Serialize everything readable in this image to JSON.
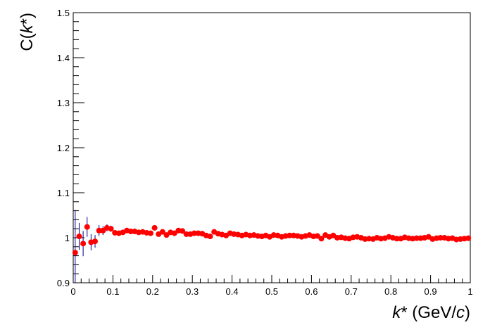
{
  "chart_data": {
    "type": "scatter",
    "xlabel_parts": [
      "k",
      "*",
      " (GeV/",
      "c",
      ")"
    ],
    "ylabel_parts": [
      "C(",
      "k",
      "*)"
    ],
    "xlim": [
      0,
      1
    ],
    "ylim": [
      0.9,
      1.5
    ],
    "x_ticks": [
      "0",
      "0.1",
      "0.2",
      "0.3",
      "0.4",
      "0.5",
      "0.6",
      "0.7",
      "0.8",
      "0.9",
      "1"
    ],
    "y_ticks": [
      "0.9",
      "1",
      "1.1",
      "1.2",
      "1.3",
      "1.4",
      "1.5"
    ],
    "grid": false,
    "marker_color": "#ff0000",
    "errorbar_color": "#00008b",
    "series": [
      {
        "x": [
          0.005,
          0.015,
          0.025,
          0.035,
          0.045,
          0.055,
          0.065,
          0.075,
          0.085,
          0.095,
          0.105,
          0.115,
          0.125,
          0.135,
          0.145,
          0.155,
          0.165,
          0.175,
          0.185,
          0.195,
          0.205,
          0.215,
          0.225,
          0.235,
          0.245,
          0.255,
          0.265,
          0.275,
          0.285,
          0.295,
          0.305,
          0.315,
          0.325,
          0.335,
          0.345,
          0.355,
          0.365,
          0.375,
          0.385,
          0.395,
          0.405,
          0.415,
          0.425,
          0.435,
          0.445,
          0.455,
          0.465,
          0.475,
          0.485,
          0.495,
          0.505,
          0.515,
          0.525,
          0.535,
          0.545,
          0.555,
          0.565,
          0.575,
          0.585,
          0.595,
          0.605,
          0.615,
          0.625,
          0.635,
          0.645,
          0.655,
          0.665,
          0.675,
          0.685,
          0.695,
          0.705,
          0.715,
          0.725,
          0.735,
          0.745,
          0.755,
          0.765,
          0.775,
          0.785,
          0.795,
          0.805,
          0.815,
          0.825,
          0.835,
          0.845,
          0.855,
          0.865,
          0.875,
          0.885,
          0.895,
          0.905,
          0.915,
          0.925,
          0.935,
          0.945,
          0.955,
          0.965,
          0.975,
          0.985,
          0.995
        ],
        "y": [
          0.967,
          1.003,
          0.987,
          1.024,
          0.99,
          0.992,
          1.016,
          1.016,
          1.022,
          1.02,
          1.011,
          1.01,
          1.012,
          1.016,
          1.014,
          1.014,
          1.012,
          1.013,
          1.011,
          1.01,
          1.022,
          1.008,
          1.013,
          1.006,
          1.012,
          1.01,
          1.016,
          1.015,
          1.008,
          1.008,
          1.01,
          1.01,
          1.009,
          1.005,
          1.003,
          1.013,
          1.009,
          1.007,
          1.005,
          1.01,
          1.008,
          1.007,
          1.005,
          1.007,
          1.005,
          1.006,
          1.004,
          1.003,
          1.005,
          1.002,
          1.006,
          1.005,
          1.002,
          1.004,
          1.005,
          1.005,
          1.004,
          1.002,
          1.004,
          1.006,
          1.003,
          1.004,
          0.998,
          1.006,
          1.002,
          1.005,
          1.0,
          1.001,
          0.999,
          0.998,
          1.001,
          1.002,
          1.0,
          0.997,
          0.998,
          0.997,
          1.0,
          0.998,
          0.999,
          1.002,
          1.0,
          0.998,
          0.998,
          1.001,
          0.999,
          0.998,
          0.999,
          0.999,
          1.0,
          1.002,
          0.997,
          0.999,
          1.0,
          1.0,
          0.998,
          0.999,
          0.996,
          0.997,
          0.998,
          0.999
        ],
        "err": [
          0.095,
          0.03,
          0.028,
          0.022,
          0.018,
          0.014,
          0.012,
          0.01,
          0.008,
          0.007,
          0.006,
          0.005,
          0.005,
          0.004,
          0.004,
          0.004,
          0.003,
          0.003,
          0.003,
          0.003,
          0.003,
          0.003,
          0.003,
          0.003,
          0.003,
          0.003,
          0.003,
          0.003,
          0.003,
          0.003,
          0.003,
          0.003,
          0.003,
          0.003,
          0.003,
          0.003,
          0.003,
          0.003,
          0.003,
          0.003,
          0.003,
          0.003,
          0.003,
          0.003,
          0.003,
          0.003,
          0.003,
          0.003,
          0.003,
          0.003,
          0.003,
          0.003,
          0.003,
          0.003,
          0.003,
          0.003,
          0.003,
          0.003,
          0.003,
          0.003,
          0.003,
          0.003,
          0.003,
          0.003,
          0.003,
          0.003,
          0.003,
          0.003,
          0.003,
          0.003,
          0.003,
          0.003,
          0.003,
          0.003,
          0.003,
          0.003,
          0.003,
          0.003,
          0.003,
          0.003,
          0.003,
          0.003,
          0.003,
          0.003,
          0.003,
          0.003,
          0.003,
          0.003,
          0.003,
          0.003,
          0.003,
          0.003,
          0.003,
          0.003,
          0.003,
          0.003,
          0.003,
          0.003,
          0.003,
          0.003
        ]
      }
    ]
  }
}
